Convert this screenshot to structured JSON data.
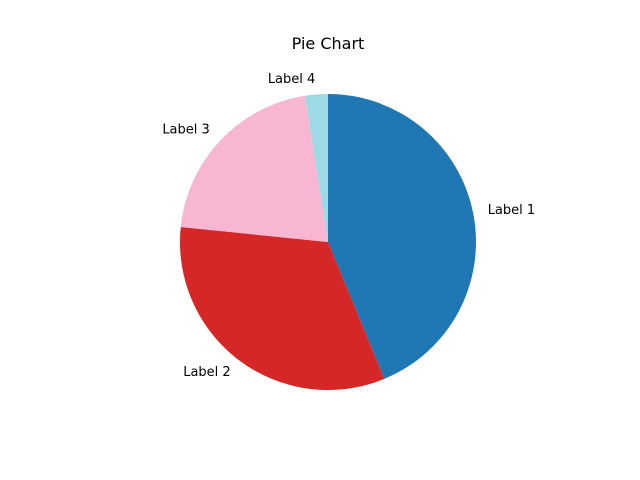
{
  "chart_data": {
    "type": "pie",
    "title": "Pie Chart",
    "labels": [
      "Label 1",
      "Label 2",
      "Label 3",
      "Label 4"
    ],
    "values": [
      44,
      33,
      21,
      2.5
    ],
    "colors": [
      "#1f77b4",
      "#d62728",
      "#f7b6d2",
      "#9edae5"
    ],
    "start_angle": 90,
    "direction": "clockwise"
  }
}
